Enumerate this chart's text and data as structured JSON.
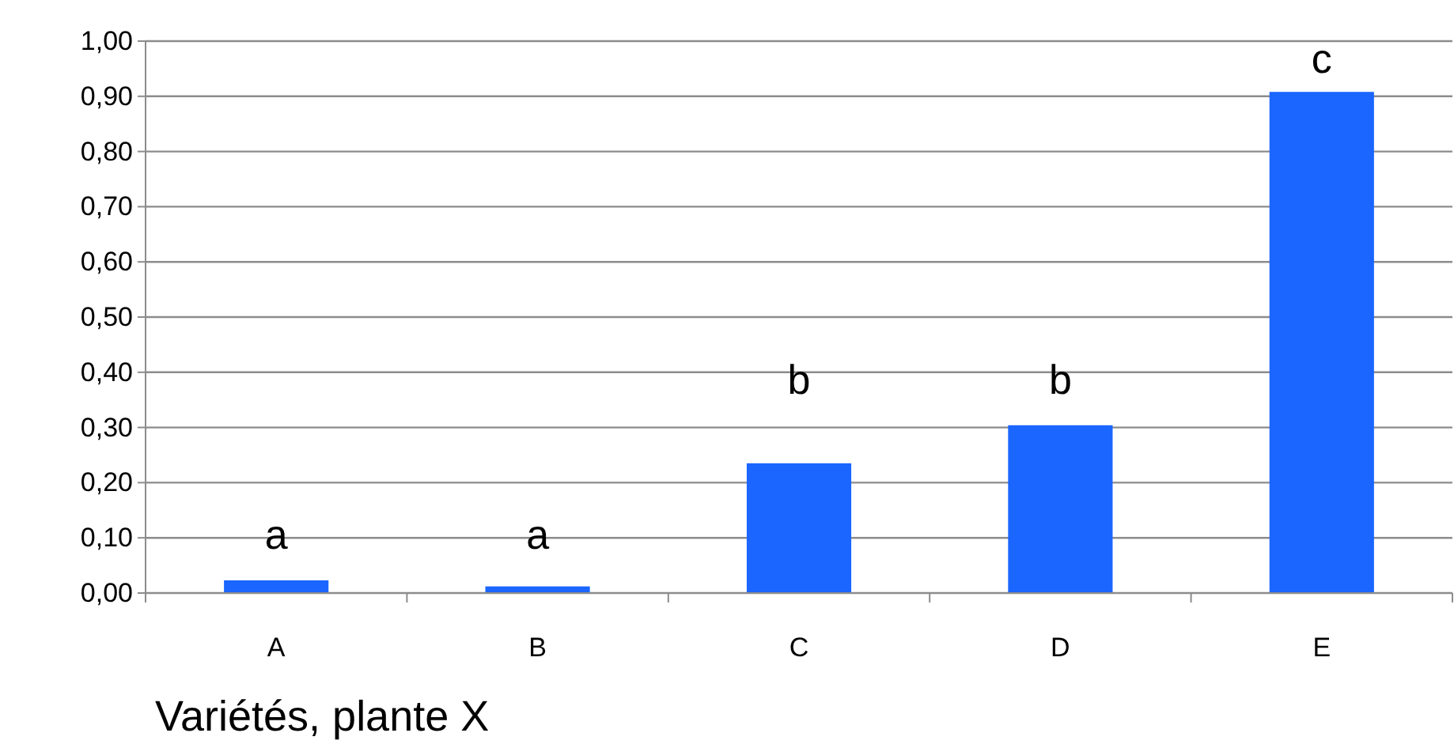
{
  "chart_data": {
    "type": "bar",
    "xlabel": "Variétés, plante X",
    "categories": [
      "A",
      "B",
      "C",
      "D",
      "E"
    ],
    "values": [
      0.023,
      0.012,
      0.235,
      0.304,
      0.908
    ],
    "color": "#1a66ff",
    "ylim": [
      0,
      1
    ],
    "yticks": [
      {
        "value": 0,
        "label": "0,00"
      },
      {
        "value": 0.1,
        "label": "0,10"
      },
      {
        "value": 0.2,
        "label": "0,20"
      },
      {
        "value": 0.3,
        "label": "0,30"
      },
      {
        "value": 0.4,
        "label": "0,40"
      },
      {
        "value": 0.5,
        "label": "0,50"
      },
      {
        "value": 0.6,
        "label": "0,60"
      },
      {
        "value": 0.7,
        "label": "0,70"
      },
      {
        "value": 0.8,
        "label": "0,80"
      },
      {
        "value": 0.9,
        "label": "0,90"
      },
      {
        "value": 1,
        "label": "1,00"
      }
    ],
    "grid": "y",
    "annotations": [
      "a",
      "a",
      "b",
      "b",
      "c"
    ]
  }
}
